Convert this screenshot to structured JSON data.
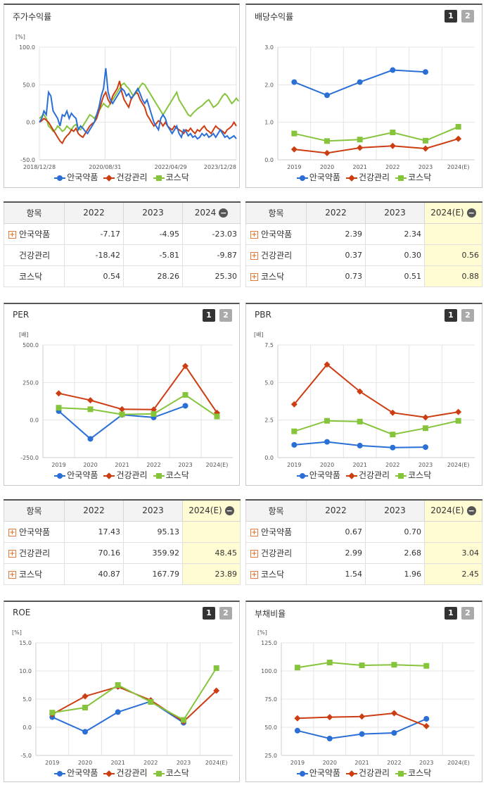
{
  "colors": {
    "blue": "#2a6fd6",
    "red": "#cc3d12",
    "green": "#86c43c",
    "grid": "#e4e4e4"
  },
  "legend": [
    "안국약품",
    "건강관리",
    "코스닥"
  ],
  "pagination": [
    "1",
    "2"
  ],
  "panels": {
    "stock": {
      "title": "주가수익률",
      "unit": "[%]"
    },
    "div": {
      "title": "배당수익률",
      "unit": ""
    },
    "per": {
      "title": "PER",
      "unit": "[배]"
    },
    "pbr": {
      "title": "PBR",
      "unit": "[배]"
    },
    "roe": {
      "title": "ROE",
      "unit": "[%]"
    },
    "debt": {
      "title": "부채비율",
      "unit": "[%]"
    }
  },
  "tables": {
    "stock": {
      "header": [
        "항목",
        "2022",
        "2023",
        "2024"
      ],
      "rows": [
        {
          "name": "안국약품",
          "values": [
            "-7.17",
            "-4.95",
            "-23.03"
          ]
        },
        {
          "name": "건강관리",
          "values": [
            "-18.42",
            "-5.81",
            "-9.87"
          ]
        },
        {
          "name": "코스닥",
          "values": [
            "0.54",
            "28.26",
            "25.30"
          ]
        }
      ]
    },
    "div": {
      "header": [
        "항목",
        "2022",
        "2023",
        "2024(E)"
      ],
      "rows": [
        {
          "name": "안국약품",
          "values": [
            "2.39",
            "2.34",
            ""
          ]
        },
        {
          "name": "건강관리",
          "values": [
            "0.37",
            "0.30",
            "0.56"
          ]
        },
        {
          "name": "코스닥",
          "values": [
            "0.73",
            "0.51",
            "0.88"
          ]
        }
      ]
    },
    "per": {
      "header": [
        "항목",
        "2022",
        "2023",
        "2024(E)"
      ],
      "rows": [
        {
          "name": "안국약품",
          "values": [
            "17.43",
            "95.13",
            ""
          ]
        },
        {
          "name": "건강관리",
          "values": [
            "70.16",
            "359.92",
            "48.45"
          ]
        },
        {
          "name": "코스닥",
          "values": [
            "40.87",
            "167.79",
            "23.89"
          ]
        }
      ]
    },
    "pbr": {
      "header": [
        "항목",
        "2022",
        "2023",
        "2024(E)"
      ],
      "rows": [
        {
          "name": "안국약품",
          "values": [
            "0.67",
            "0.70",
            ""
          ]
        },
        {
          "name": "건강관리",
          "values": [
            "2.99",
            "2.68",
            "3.04"
          ]
        },
        {
          "name": "코스닥",
          "values": [
            "1.54",
            "1.96",
            "2.45"
          ]
        }
      ]
    }
  },
  "chart_data": [
    {
      "id": "stock",
      "type": "line",
      "ylim": [
        -50,
        100
      ],
      "yticks": [
        -50,
        0,
        50,
        100
      ],
      "xlabels": [
        "2018/12/28",
        "2020/08/31",
        "2022/04/29",
        "2023/12/28"
      ],
      "series": [
        {
          "name": "안국약품",
          "values": [
            0,
            5,
            15,
            10,
            40,
            35,
            15,
            10,
            5,
            -5,
            10,
            8,
            15,
            5,
            12,
            8,
            5,
            -10,
            -5,
            -8,
            -12,
            -15,
            -10,
            -5,
            0,
            10,
            20,
            35,
            45,
            72,
            40,
            30,
            25,
            30,
            35,
            40,
            45,
            42,
            35,
            38,
            32,
            35,
            40,
            45,
            38,
            30,
            25,
            30,
            20,
            10,
            0,
            -5,
            -10,
            5,
            10,
            5,
            -5,
            -10,
            -15,
            -10,
            -5,
            -15,
            -20,
            -10,
            -12,
            -18,
            -15,
            -20,
            -18,
            -22,
            -20,
            -15,
            -18,
            -15,
            -20,
            -18,
            -15,
            -20,
            -15,
            -10,
            -15,
            -20,
            -18,
            -22,
            -20,
            -18,
            -22
          ]
        },
        {
          "name": "건강관리",
          "values": [
            0,
            2,
            5,
            3,
            0,
            -5,
            -10,
            -15,
            -20,
            -25,
            -28,
            -22,
            -18,
            -15,
            -10,
            -12,
            -8,
            -15,
            -18,
            -20,
            -15,
            -10,
            -5,
            -2,
            0,
            5,
            15,
            25,
            35,
            40,
            30,
            25,
            35,
            40,
            45,
            55,
            40,
            30,
            25,
            20,
            30,
            35,
            40,
            38,
            30,
            25,
            20,
            10,
            5,
            0,
            -5,
            -2,
            2,
            0,
            -5,
            0,
            -5,
            -8,
            -10,
            -5,
            -8,
            -10,
            -12,
            -15,
            -10,
            -12,
            -8,
            -12,
            -15,
            -10,
            -12,
            -8,
            -5,
            -10,
            -12,
            -15,
            -10,
            -5,
            -8,
            -10,
            -12,
            -15,
            -10,
            -8,
            -5,
            0,
            -5
          ]
        },
        {
          "name": "코스닥",
          "values": [
            5,
            8,
            10,
            5,
            -5,
            -8,
            -12,
            -10,
            -5,
            -8,
            -12,
            -10,
            -5,
            -8,
            -10,
            -5,
            -3,
            -8,
            -10,
            -5,
            0,
            5,
            10,
            8,
            5,
            10,
            15,
            20,
            25,
            22,
            20,
            25,
            30,
            35,
            40,
            45,
            50,
            52,
            48,
            45,
            40,
            35,
            38,
            42,
            48,
            52,
            50,
            45,
            40,
            35,
            30,
            25,
            20,
            15,
            10,
            15,
            20,
            25,
            30,
            35,
            40,
            30,
            25,
            20,
            15,
            10,
            8,
            12,
            15,
            18,
            20,
            22,
            25,
            28,
            30,
            25,
            20,
            22,
            25,
            30,
            35,
            38,
            35,
            30,
            25,
            28,
            32,
            28
          ]
        }
      ]
    },
    {
      "id": "div",
      "type": "line",
      "ylim": [
        0,
        3
      ],
      "yticks": [
        0,
        1,
        2,
        3
      ],
      "categories": [
        "2019",
        "2020",
        "2021",
        "2022",
        "2023",
        "2024(E)"
      ],
      "series": [
        {
          "name": "안국약품",
          "values": [
            2.07,
            1.72,
            2.07,
            2.39,
            2.34,
            null
          ]
        },
        {
          "name": "건강관리",
          "values": [
            0.28,
            0.18,
            0.32,
            0.37,
            0.3,
            0.56
          ]
        },
        {
          "name": "코스닥",
          "values": [
            0.7,
            0.5,
            0.54,
            0.73,
            0.51,
            0.88
          ]
        }
      ]
    },
    {
      "id": "per",
      "type": "line",
      "ylim": [
        -250,
        500
      ],
      "yticks": [
        -250,
        0,
        250,
        500
      ],
      "categories": [
        "2019",
        "2020",
        "2021",
        "2022",
        "2023",
        "2024(E)"
      ],
      "series": [
        {
          "name": "안국약품",
          "values": [
            60,
            -125,
            35,
            17.43,
            95.13,
            null
          ]
        },
        {
          "name": "건강관리",
          "values": [
            178,
            132,
            72,
            70.16,
            359.92,
            48.45
          ]
        },
        {
          "name": "코스닥",
          "values": [
            82,
            72,
            38,
            40.87,
            167.79,
            23.89
          ]
        }
      ]
    },
    {
      "id": "pbr",
      "type": "line",
      "ylim": [
        0,
        7.5
      ],
      "yticks": [
        0,
        2.5,
        5,
        7.5
      ],
      "categories": [
        "2019",
        "2020",
        "2021",
        "2022",
        "2023",
        "2024(E)"
      ],
      "series": [
        {
          "name": "안국약품",
          "values": [
            0.85,
            1.05,
            0.8,
            0.67,
            0.7,
            null
          ]
        },
        {
          "name": "건강관리",
          "values": [
            3.55,
            6.2,
            4.4,
            2.99,
            2.68,
            3.04
          ]
        },
        {
          "name": "코스닥",
          "values": [
            1.75,
            2.45,
            2.4,
            1.54,
            1.96,
            2.45
          ]
        }
      ]
    },
    {
      "id": "roe",
      "type": "line",
      "ylim": [
        -5,
        15
      ],
      "yticks": [
        -5,
        0,
        5,
        10,
        15
      ],
      "categories": [
        "2019",
        "2020",
        "2021",
        "2022",
        "2023",
        "2024(E)"
      ],
      "series": [
        {
          "name": "안국약품",
          "values": [
            1.8,
            -0.8,
            2.7,
            4.6,
            0.8,
            null
          ]
        },
        {
          "name": "건강관리",
          "values": [
            2.3,
            5.5,
            7.2,
            4.8,
            1.0,
            6.5
          ]
        },
        {
          "name": "코스닥",
          "values": [
            2.6,
            3.5,
            7.5,
            4.5,
            1.3,
            10.5
          ]
        }
      ]
    },
    {
      "id": "debt",
      "type": "line",
      "ylim": [
        25,
        125
      ],
      "yticks": [
        25,
        50,
        75,
        100,
        125
      ],
      "categories": [
        "2019",
        "2020",
        "2021",
        "2022",
        "2023",
        "2024(E)"
      ],
      "series": [
        {
          "name": "안국약품",
          "values": [
            47,
            40,
            44,
            45,
            57.5,
            null
          ]
        },
        {
          "name": "건강관리",
          "values": [
            58,
            59,
            59.5,
            62.5,
            51,
            null
          ]
        },
        {
          "name": "코스닥",
          "values": [
            103,
            107.5,
            105,
            105.5,
            104.5,
            null
          ]
        }
      ]
    }
  ]
}
